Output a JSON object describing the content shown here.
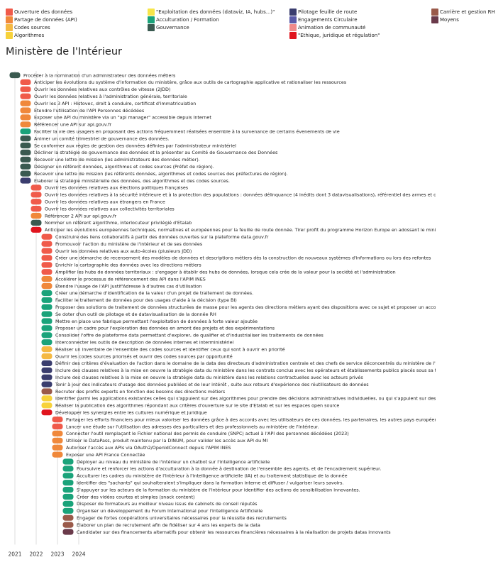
{
  "legend": [
    {
      "label": "Ouverture des données",
      "color": "#f05a4a"
    },
    {
      "label": "Partage de données (API)",
      "color": "#f0883a"
    },
    {
      "label": "Codes sources",
      "color": "#f5b942"
    },
    {
      "label": "Algorithmes",
      "color": "#f7d23a"
    },
    {
      "label": "\"Exploitation des données (dataviz, IA, hubs...)\"",
      "color": "#f7e54a"
    },
    {
      "label": "Acculturation / Formation",
      "color": "#1aa37a"
    },
    {
      "label": "Gouvernance",
      "color": "#3a5a50"
    },
    {
      "label": "Pilotage feuille de route",
      "color": "#3a3d6e"
    },
    {
      "label": "Engagements Circulaire",
      "color": "#5a5aa8"
    },
    {
      "label": "Animation de communauté",
      "color": "#f08a8a"
    },
    {
      "label": "\"Ethique, juridique et régulation\"",
      "color": "#e0141e"
    },
    {
      "label": "Carrière et gestion RH",
      "color": "#9a5a4a"
    },
    {
      "label": "Moyens",
      "color": "#6a3a4a"
    }
  ],
  "title": "Ministère de l'Intérieur",
  "chart_data": {
    "type": "table",
    "x_ticks": [
      "2021",
      "2022",
      "2023",
      "2024"
    ],
    "items": [
      {
        "label": "Procéder à la nomination d'un administrateur des données métiers",
        "start": "2021",
        "category": "Gouvernance"
      },
      {
        "label": "Anticiper les évolutions du système d'information du ministère, grâce aux outils de cartographie applicative et rationaliser les ressources",
        "start": "2021-07",
        "category": "Ouverture des données"
      },
      {
        "label": "Ouvrir les données relatives aux contrôles de vitesse (2JDD)",
        "start": "2021-07",
        "category": "Ouverture des données"
      },
      {
        "label": "Ouvrir les données relatives à l'administration générale, territoriale",
        "start": "2021-07",
        "category": "Ouverture des données"
      },
      {
        "label": "Ouvrir les 3 API : Histovec, droit à conduire, certificat d'immatriculation",
        "start": "2021-07",
        "category": "Partage de données (API)"
      },
      {
        "label": "Etendre l'utilisation de l'API Personnes décédées",
        "start": "2021-07",
        "category": "Partage de données (API)"
      },
      {
        "label": "Exposer une API du ministère via un \"api manager\" accessible depuis Internet",
        "start": "2021-07",
        "category": "Partage de données (API)"
      },
      {
        "label": "Référencer une API sur api.gouv.fr",
        "start": "2021-07",
        "category": "Partage de données (API)"
      },
      {
        "label": "Faciliter la vie des usagers en proposant des actions fréquemment réalisées ensemble à la survenance de certains évenements de vie",
        "start": "2021-07",
        "category": "Acculturation / Formation"
      },
      {
        "label": "Animer un comité trimestriel de gouvernance des données.",
        "start": "2021-07",
        "category": "Gouvernance"
      },
      {
        "label": "Se conformer aux règles de gestion des données définies par l'administrateur ministériel",
        "start": "2021-07",
        "category": "Gouvernance"
      },
      {
        "label": "Décliner la stratégie de gouvernance des données et la présenter au Comité de Gouvernance des Données",
        "start": "2021-07",
        "category": "Gouvernance"
      },
      {
        "label": "Recevoir une lettre de mission (les administrateurs des données métier).",
        "start": "2021-07",
        "category": "Gouvernance"
      },
      {
        "label": "Désigner un référent données, algorithmes et codes sources (Préfet de région).",
        "start": "2021-07",
        "category": "Gouvernance"
      },
      {
        "label": "Recevoir une lettre de mission (les référents données, algorithmes et codes sources des préfectures de région).",
        "start": "2021-07",
        "category": "Gouvernance"
      },
      {
        "label": "Elaborer la stratégie ministérielle des données, des algorithmes et des codes sources.",
        "start": "2021-07",
        "category": "Pilotage feuille de route"
      },
      {
        "label": "Ouvrir les données relatives aux élections politiques françaises",
        "start": "2022",
        "category": "Ouverture des données"
      },
      {
        "label": "Ouvrir les données relatives à la sécurité intérieure et à la protection des populations : données délinquance (4 inédits dont 3 datavisualisations), référentiel des armes et des munitions, données relatives aux accidents de la route",
        "start": "2022",
        "category": "Ouverture des données"
      },
      {
        "label": "Ouvrir les données relatives aux étrangers en France",
        "start": "2022",
        "category": "Ouverture des données"
      },
      {
        "label": "Ouvrir les données relatives aux collectivités territoriales",
        "start": "2022",
        "category": "Ouverture des données"
      },
      {
        "label": "Référencer 2 API sur api.gouv.fr",
        "start": "2022",
        "category": "Partage de données (API)"
      },
      {
        "label": "Nommer un référent algorithme, interlocuteur privilégié d'Etalab",
        "start": "2022",
        "category": "Gouvernance"
      },
      {
        "label": "Anticiper les évolutions européennes techniques, normatives et européennes pour la feuille de route donnée. Tirer profit du programme Horizon Europe en adossant le ministère à des projets de recherche et d'innovation",
        "start": "2022",
        "category": "\"Ethique, juridique et régulation\""
      },
      {
        "label": "Construire des liens collaboratifs à partir des données ouvertes sur la plateforme data.gouv.fr",
        "start": "2022-07",
        "category": "Ouverture des données"
      },
      {
        "label": "Promouvoir l'action du ministère de l'intérieur et de ses données",
        "start": "2022-07",
        "category": "Ouverture des données"
      },
      {
        "label": "Ouvrir les données relatives aux auto-écoles (plusieurs JDD)",
        "start": "2022-07",
        "category": "Ouverture des données"
      },
      {
        "label": "Créer une démarche de recensement des modèles de données et descriptions métiers dès la construction de nouveaux systèmes d'informations ou lors des refontes",
        "start": "2022-07",
        "category": "Ouverture des données"
      },
      {
        "label": "Enrichir la cartographie des données avec les directions métiers",
        "start": "2022-07",
        "category": "Ouverture des données"
      },
      {
        "label": "Amplifier les hubs de données territoriaux : s'engager à établir des hubs de données, lorsque cela crée de la valeur pour la société et l'administration",
        "start": "2022-07",
        "category": "Ouverture des données"
      },
      {
        "label": "Accélérer le processus de référencement des API dans l'APIM INES",
        "start": "2022-07",
        "category": "Partage de données (API)"
      },
      {
        "label": "Étendre l'usage de l'API Justif'Adresse à d'autres cas d'utilisation",
        "start": "2022-07",
        "category": "Partage de données (API)"
      },
      {
        "label": "Créer une démarche d'identification de la valeur d'un projet de traitement de données.",
        "start": "2022-07",
        "category": "Acculturation / Formation"
      },
      {
        "label": "Faciliter le traitement de données pour des usages d'aide à la décision (type BI)",
        "start": "2022-07",
        "category": "Acculturation / Formation"
      },
      {
        "label": "Proposer des solutions de traitement de données structurées de masse pour les agents des directions métiers ayant des dispositions avec ce sujet et proposer un accompagnement",
        "start": "2022-07",
        "category": "Acculturation / Formation"
      },
      {
        "label": "Se doter d'un outil de pilotage et de datavisualisation de la donnée RH",
        "start": "2022-07",
        "category": "Acculturation / Formation"
      },
      {
        "label": "Mettre en place une fabrique permettant l'exploitation de données à forte valeur ajoutée",
        "start": "2022-07",
        "category": "Acculturation / Formation"
      },
      {
        "label": "Proposer un cadre pour l'exploration des données en amont des projets et des expérimentations",
        "start": "2022-07",
        "category": "Acculturation / Formation"
      },
      {
        "label": "Consolider l'offre de plateforme data permettant d'explorer, de qualifier et d'industrialiser les traitements de données",
        "start": "2022-07",
        "category": "Acculturation / Formation"
      },
      {
        "label": "Interconnecter les outils de description de données internes et interministériel",
        "start": "2022-07",
        "category": "Acculturation / Formation"
      },
      {
        "label": "Réaliser un inventaire de l'ensemble des codes sources et identifier ceux qui sont à ouvrir en priorité",
        "start": "2022-07",
        "category": "Codes sources"
      },
      {
        "label": "Ouvrir les codes sources priorisés et ouvrir des codes sources par opportunité",
        "start": "2022-07",
        "category": "Codes sources"
      },
      {
        "label": "Définir des critères d'évaluation de l'action dans le domaine de la data des directeurs d'administration centrale et des chefs de service déconcentrés du ministère de l'intérieur",
        "start": "2022-07",
        "category": "Pilotage feuille de route"
      },
      {
        "label": "Inclure des clauses relatives à la mise en oeuvre la stratégie data du ministère dans les contrats conclus avec les opérateurs et établissements publics placés sous sa tutelle",
        "start": "2022-07",
        "category": "Pilotage feuille de route"
      },
      {
        "label": "Inclure des clauses relatives à la mise en oeuvre la stratégie data du ministère dans les relations contractuelles avec les acteurs privés",
        "start": "2022-07",
        "category": "Pilotage feuille de route"
      },
      {
        "label": "Tenir à jour des indicateurs d'usage des données publiées et de leur intérêt , suite aux retours d'expérience des réutilisateurs de données",
        "start": "2022-07",
        "category": "Pilotage feuille de route"
      },
      {
        "label": "Recruter des profils experts en fonction des besoins des directions métiers",
        "start": "2022-07",
        "category": "Carrière et gestion RH"
      },
      {
        "label": "Identifier parmi les applications existantes celles qui s'appuient sur des algorithmes pour prendre des décisions administratives individuelles, ou qui s'appuient sur des algorithmes",
        "start": "2022-07",
        "category": "Algorithmes"
      },
      {
        "label": "Réaliser la publication des algorithmes répondant aux critères d'ouverture sur le site d'Etalab et sur les espaces open source",
        "start": "2022-07",
        "category": "Algorithmes"
      },
      {
        "label": "Développer les synergies entre les cultures numérique et juridique",
        "start": "2022-07",
        "category": "\"Ethique, juridique et régulation\""
      },
      {
        "label": "Partager les efforts financiers pour mieux valoriser les données grâce à des accords avec les utilisateurs de ces données, les partenaires, les autres pays européens",
        "start": "2023",
        "category": "Ouverture des données"
      },
      {
        "label": "Lancer une étude sur l'utilisation des adresses des particuliers et des professionnels au ministère de l'Intérieur.",
        "start": "2023",
        "category": "Ouverture des données"
      },
      {
        "label": "Connecter l'outil remplaçant le Fichier national des permis de conduire (SNPC) actuel à l'API des personnes décédées (2023)",
        "start": "2023",
        "category": "Partage de données (API)"
      },
      {
        "label": "Utiliser le DataPass, produit maintenu par la DINUM, pour valider les accès aux API du MI",
        "start": "2023",
        "category": "Partage de données (API)"
      },
      {
        "label": "Autoriser l'accès aux APIs via OAuth2/OpenIdConnect depuis l'APIM INES",
        "start": "2023",
        "category": "Partage de données (API)"
      },
      {
        "label": "Exposer une API France Connectée",
        "start": "2023",
        "category": "Partage de données (API)"
      },
      {
        "label": "Déployer au niveau du ministère de l'intérieur un chatbot sur l'intelligence artificielle",
        "start": "2023-07",
        "category": "Acculturation / Formation"
      },
      {
        "label": "Poursuivre et renforcer les actions d'acculturation à la donnée à destination de l'ensemble des agents, et de l'encadrement supérieur.",
        "start": "2023-07",
        "category": "Acculturation / Formation"
      },
      {
        "label": "Acculturer les cadres du ministère de l'Intérieur à l'intelligence artificielle (IA) et au traitement statistique de la donnée",
        "start": "2023-07",
        "category": "Acculturation / Formation"
      },
      {
        "label": "Identifier des \"sachants\" qui souhaiteraient s'impliquer dans la formation interne et diffuser / vulgariser leurs savoirs.",
        "start": "2023-07",
        "category": "Acculturation / Formation"
      },
      {
        "label": "S'appuyer sur les acteurs de la formation du ministère de l'intérieur pour identifier des actions de sensibilisation innovantes.",
        "start": "2023-07",
        "category": "Acculturation / Formation"
      },
      {
        "label": "Créer des vidéos courtes et simples (snack content)",
        "start": "2023-07",
        "category": "Acculturation / Formation"
      },
      {
        "label": "Disposer de formateurs au meilleur niveau issus de cabinets de conseil réputés",
        "start": "2023-07",
        "category": "Acculturation / Formation"
      },
      {
        "label": "Organiser un développement du Forum International pour l'Intelligence Artificielle",
        "start": "2023-07",
        "category": "Acculturation / Formation"
      },
      {
        "label": "Engager de fortes coopérations universitaires nécessaires pour la réussite des recrutements",
        "start": "2023-07",
        "category": "Carrière et gestion RH"
      },
      {
        "label": "Elaborer un plan de recrutement afin de fidéliser sur 4 ans les experts de la data",
        "start": "2023-07",
        "category": "Carrière et gestion RH"
      },
      {
        "label": "Candidater sur des financements alternatifs pour obtenir les ressources financières nécessaires à la réalisation de projets datas innovants",
        "start": "2023-07",
        "category": "Moyens"
      }
    ]
  }
}
